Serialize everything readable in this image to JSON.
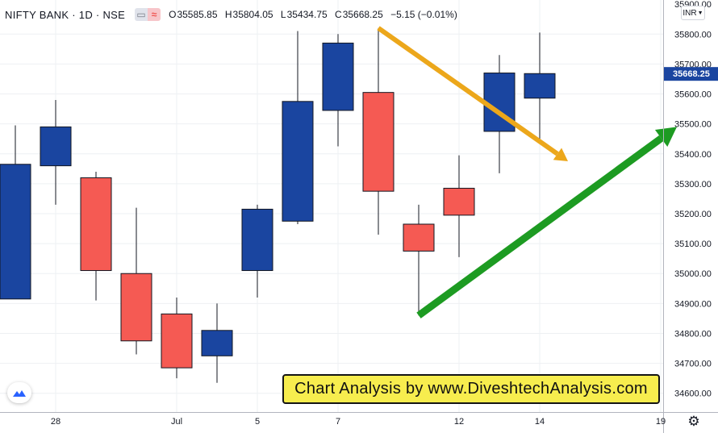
{
  "header": {
    "symbol": "NIFTY BANK · 1D · NSE",
    "ohlc": [
      {
        "key": "O",
        "value": "35585.85"
      },
      {
        "key": "H",
        "value": "35804.05"
      },
      {
        "key": "L",
        "value": "35434.75"
      },
      {
        "key": "C",
        "value": "35668.25"
      }
    ],
    "change": "−5.15 (−0.01%)",
    "currency": "INR"
  },
  "banner": "Chart Analysis by www.DiveshtechAnalysis.com",
  "colors": {
    "up": "#1a45a0",
    "down": "#f55a53",
    "price_tag": "#1a45a0",
    "arrow_down": "#eca71b",
    "arrow_up": "#1d9b22",
    "grid": "#eef0f3"
  },
  "chart_data": {
    "type": "candlestick",
    "ylim": [
      34540,
      35860
    ],
    "y_ticks": [
      "34600.00",
      "34700.00",
      "34800.00",
      "34900.00",
      "35000.00",
      "35100.00",
      "35200.00",
      "35300.00",
      "35400.00",
      "35500.00",
      "35600.00",
      "35700.00",
      "35800.00"
    ],
    "top_tick": "35900.00",
    "x_ticks": [
      {
        "index": 1,
        "label": "28"
      },
      {
        "index": 4,
        "label": "Jul"
      },
      {
        "index": 6,
        "label": "5"
      },
      {
        "index": 8,
        "label": "7"
      },
      {
        "index": 11,
        "label": "12"
      },
      {
        "index": 13,
        "label": "14"
      },
      {
        "index": 16,
        "label": "19"
      }
    ],
    "last_price": "35668.25",
    "last_value": 35668.25,
    "candles": [
      {
        "o": 34915,
        "h": 35495,
        "l": 34915,
        "c": 35365
      },
      {
        "o": 35360,
        "h": 35580,
        "l": 35230,
        "c": 35490
      },
      {
        "o": 35320,
        "h": 35340,
        "l": 34910,
        "c": 35010
      },
      {
        "o": 35000,
        "h": 35220,
        "l": 34730,
        "c": 34775
      },
      {
        "o": 34865,
        "h": 34920,
        "l": 34650,
        "c": 34685
      },
      {
        "o": 34725,
        "h": 34900,
        "l": 34635,
        "c": 34810
      },
      {
        "o": 35010,
        "h": 35230,
        "l": 34920,
        "c": 35215
      },
      {
        "o": 35175,
        "h": 35810,
        "l": 35165,
        "c": 35575
      },
      {
        "o": 35545,
        "h": 35800,
        "l": 35425,
        "c": 35770
      },
      {
        "o": 35605,
        "h": 35820,
        "l": 35130,
        "c": 35275
      },
      {
        "o": 35165,
        "h": 35230,
        "l": 34860,
        "c": 35075
      },
      {
        "o": 35285,
        "h": 35395,
        "l": 35055,
        "c": 35195
      },
      {
        "o": 35475,
        "h": 35730,
        "l": 35335,
        "c": 35670
      },
      {
        "o": 35586,
        "h": 35805,
        "l": 35434,
        "c": 35668
      }
    ],
    "annotations": [
      {
        "type": "arrow",
        "color": "arrow_down",
        "from": [
          9.0,
          35820
        ],
        "to": [
          13.7,
          35375
        ]
      },
      {
        "type": "arrow",
        "color": "arrow_up",
        "from": [
          10.0,
          34860
        ],
        "to": [
          16.4,
          35490
        ]
      }
    ]
  }
}
